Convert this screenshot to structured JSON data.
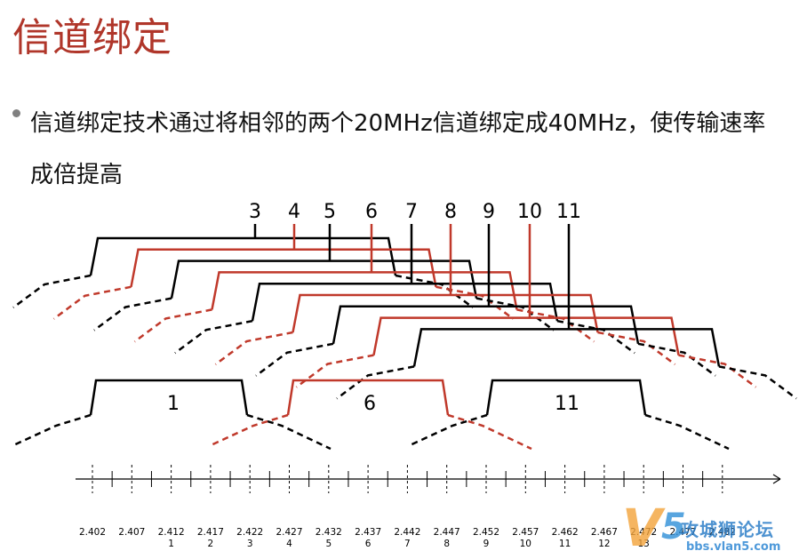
{
  "title": "信道绑定",
  "bullet_text": "信道绑定技术通过将相邻的两个20MHz信道绑定成40MHz，使传输速率成倍提高",
  "colors": {
    "title": "#b0362a",
    "red": "#c0392b",
    "black": "#000000"
  },
  "upper_channel_labels": [
    "3",
    "4",
    "5",
    "6",
    "7",
    "8",
    "9",
    "10",
    "11"
  ],
  "lower_channel_labels": [
    "1",
    "6",
    "11"
  ],
  "axis_ticks": [
    {
      "freq": "2.402",
      "ch": ""
    },
    {
      "freq": "2.407",
      "ch": ""
    },
    {
      "freq": "2.412",
      "ch": "1"
    },
    {
      "freq": "2.417",
      "ch": "2"
    },
    {
      "freq": "2.422",
      "ch": "3"
    },
    {
      "freq": "2.427",
      "ch": "4"
    },
    {
      "freq": "2.432",
      "ch": "5"
    },
    {
      "freq": "2.437",
      "ch": "6"
    },
    {
      "freq": "2.442",
      "ch": "7"
    },
    {
      "freq": "2.447",
      "ch": "8"
    },
    {
      "freq": "2.452",
      "ch": "9"
    },
    {
      "freq": "2.457",
      "ch": "10"
    },
    {
      "freq": "2.462",
      "ch": "11"
    },
    {
      "freq": "2.467",
      "ch": "12"
    },
    {
      "freq": "2.472",
      "ch": "13"
    },
    {
      "freq": "2.477",
      "ch": ""
    },
    {
      "freq": "2.482",
      "ch": ""
    }
  ],
  "watermark": {
    "mark": "V",
    "digit": "5",
    "text": "攻城狮论坛",
    "url": "bbs.vlan5.com"
  }
}
